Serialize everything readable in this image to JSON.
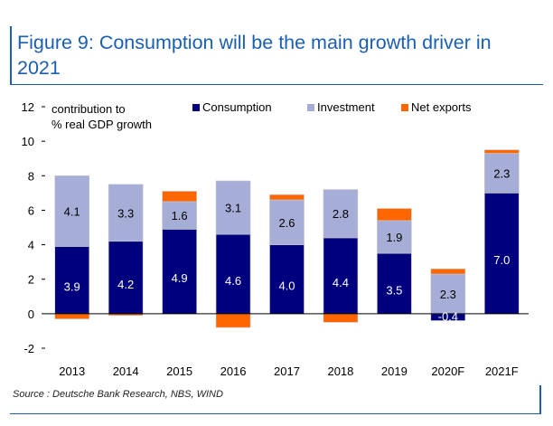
{
  "figure": {
    "title": "Figure 9: Consumption will be the main growth driver in 2021",
    "source": "Source : Deutsche Bank Research, NBS, WIND"
  },
  "chart_data": {
    "type": "bar",
    "stacked": true,
    "ylabel": "contribution to % real GDP growth",
    "ylabel_lines": [
      "contribution to",
      "% real GDP growth"
    ],
    "ylim": [
      -2,
      12
    ],
    "yticks": [
      -2,
      0,
      2,
      4,
      6,
      8,
      10,
      12
    ],
    "grid": false,
    "legend_position": "top",
    "categories": [
      "2013",
      "2014",
      "2015",
      "2016",
      "2017",
      "2018",
      "2019",
      "2020F",
      "2021F"
    ],
    "series": [
      {
        "name": "Consumption",
        "color": "#00007f",
        "values": [
          3.9,
          4.2,
          4.9,
          4.6,
          4.0,
          4.4,
          3.5,
          -0.4,
          7.0
        ],
        "labels": [
          "3.9",
          "4.2",
          "4.9",
          "4.6",
          "4.0",
          "4.4",
          "3.5",
          "-0.4",
          "7.0"
        ]
      },
      {
        "name": "Investment",
        "color": "#a6aed8",
        "values": [
          4.1,
          3.3,
          1.6,
          3.1,
          2.6,
          2.8,
          1.9,
          2.3,
          2.3
        ],
        "labels": [
          "4.1",
          "3.3",
          "1.6",
          "3.1",
          "2.6",
          "2.8",
          "1.9",
          "2.3",
          "2.3"
        ]
      },
      {
        "name": "Net exports",
        "color": "#ff6600",
        "values": [
          -0.3,
          -0.1,
          0.6,
          -0.8,
          0.3,
          -0.5,
          0.7,
          0.3,
          0.2
        ]
      }
    ]
  }
}
